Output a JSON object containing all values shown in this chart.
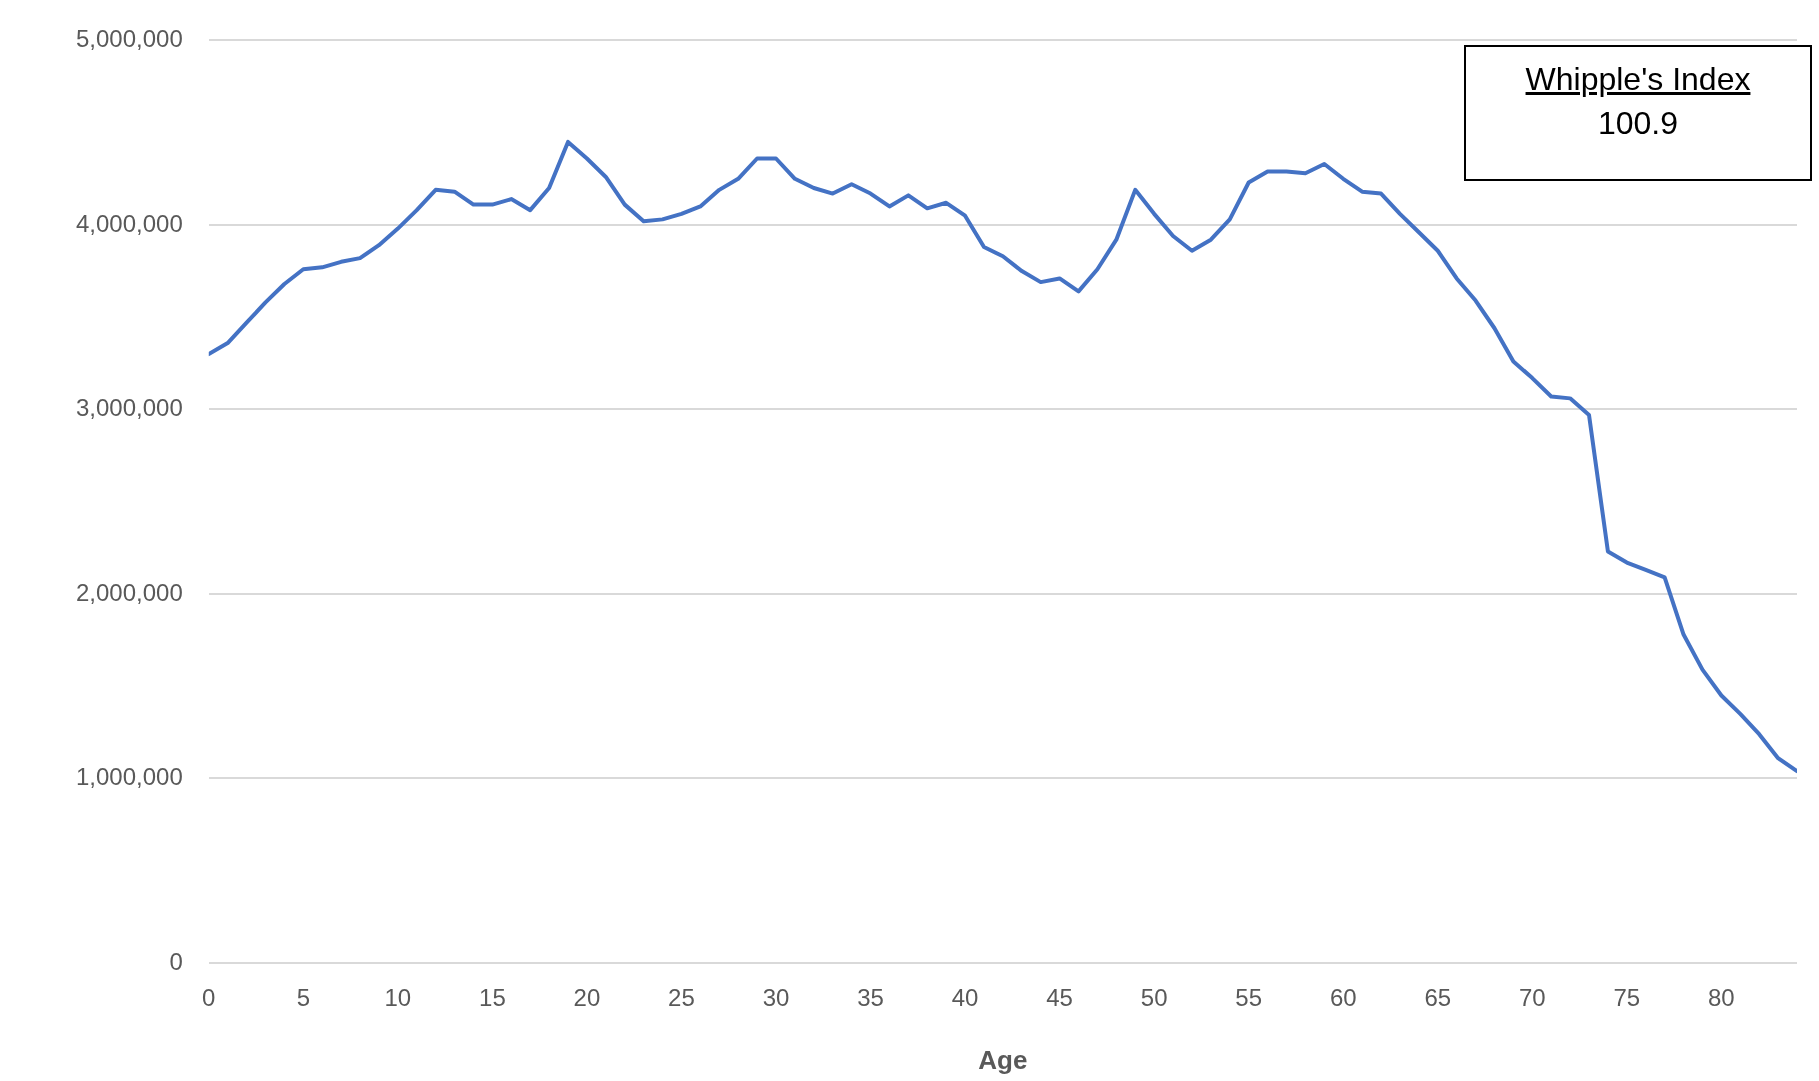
{
  "chart_data": {
    "type": "line",
    "xlabel": "Age",
    "annotations": [
      "Whipple's Index",
      "100.9"
    ],
    "x": [
      0,
      1,
      2,
      3,
      4,
      5,
      6,
      7,
      8,
      9,
      10,
      11,
      12,
      13,
      14,
      15,
      16,
      17,
      18,
      19,
      20,
      21,
      22,
      23,
      24,
      25,
      26,
      27,
      28,
      29,
      30,
      31,
      32,
      33,
      34,
      35,
      36,
      37,
      38,
      39,
      40,
      41,
      42,
      43,
      44,
      45,
      46,
      47,
      48,
      49,
      50,
      51,
      52,
      53,
      54,
      55,
      56,
      57,
      58,
      59,
      60,
      61,
      62,
      63,
      64,
      65,
      66,
      67,
      68,
      69,
      70,
      71,
      72,
      73,
      74,
      75,
      76,
      77,
      78,
      79,
      80,
      81,
      82,
      83,
      84
    ],
    "series": [
      {
        "color": "#4472c4",
        "values": [
          3300000,
          3360000,
          3470000,
          3580000,
          3680000,
          3760000,
          3770000,
          3800000,
          3820000,
          3890000,
          3980000,
          4080000,
          4190000,
          4180000,
          4110000,
          4110000,
          4140000,
          4080000,
          4200000,
          4450000,
          4360000,
          4260000,
          4110000,
          4020000,
          4030000,
          4060000,
          4100000,
          4190000,
          4250000,
          4360000,
          4360000,
          4250000,
          4200000,
          4170000,
          4220000,
          4170000,
          4100000,
          4160000,
          4090000,
          4120000,
          4050000,
          3880000,
          3830000,
          3750000,
          3690000,
          3710000,
          3640000,
          3760000,
          3920000,
          4190000,
          4060000,
          3940000,
          3860000,
          3920000,
          4030000,
          4230000,
          4290000,
          4290000,
          4280000,
          4330000,
          4250000,
          4180000,
          4170000,
          4060000,
          3960000,
          3860000,
          3710000,
          3590000,
          3440000,
          3260000,
          3170000,
          3070000,
          3060000,
          2970000,
          2230000,
          2170000,
          2130000,
          2090000,
          1780000,
          1590000,
          1450000,
          1350000,
          1240000,
          1110000,
          1040000
        ]
      }
    ],
    "xlim": [
      0,
      84
    ],
    "xticks": [
      0,
      5,
      10,
      15,
      20,
      25,
      30,
      35,
      40,
      45,
      50,
      55,
      60,
      65,
      70,
      75,
      80
    ],
    "ylim": [
      0,
      5000000
    ],
    "yticks": [
      0,
      {
        "value": 1000000,
        "label": "1,000,000"
      },
      {
        "value": 2000000,
        "label": "2,000,000"
      },
      {
        "value": 3000000,
        "label": "3,000,000"
      },
      {
        "value": 4000000,
        "label": "4,000,000"
      },
      {
        "value": 5000000,
        "label": "5,000,000"
      }
    ],
    "grid": "y",
    "legend": false,
    "marker": "none",
    "line_style": "solid"
  }
}
